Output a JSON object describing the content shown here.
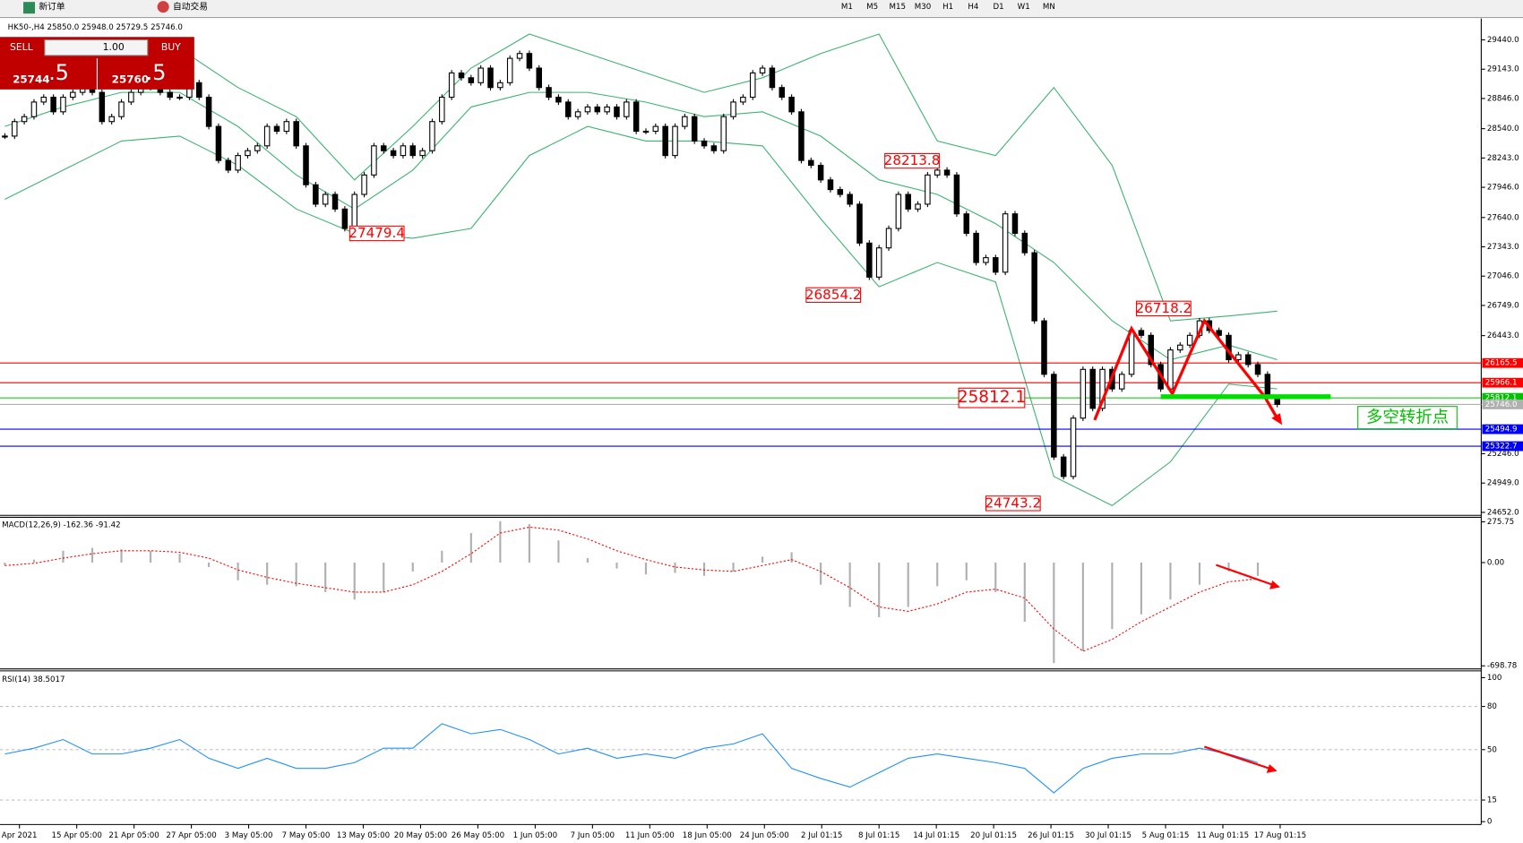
{
  "toolbar": {
    "new_order": "新订单",
    "auto_trading": "自动交易",
    "timeframes": [
      "M1",
      "M5",
      "M15",
      "M30",
      "H1",
      "H4",
      "D1",
      "W1",
      "MN"
    ]
  },
  "trade_panel": {
    "sell": "SELL",
    "buy": "BUY",
    "lots": "1.00",
    "sell_price": "25744",
    "sell_pips": ".5",
    "buy_price": "25760",
    "buy_pips": ".5"
  },
  "chart_data": {
    "type": "candlestick",
    "title": "HK50-,H4  25850.0 25948.0 25729.5 25746.0",
    "x_labels": [
      "Apr 2021",
      "15 Apr 05:00",
      "21 Apr 05:00",
      "27 Apr 05:00",
      "3 May 05:00",
      "7 May 05:00",
      "13 May 05:00",
      "20 May 05:00",
      "26 May 05:00",
      "1 Jun 05:00",
      "7 Jun 05:00",
      "11 Jun 05:00",
      "18 Jun 05:00",
      "24 Jun 05:00",
      "2 Jul 01:15",
      "8 Jul 01:15",
      "14 Jul 01:15",
      "20 Jul 01:15",
      "26 Jul 01:15",
      "30 Jul 01:15",
      "5 Aug 01:15",
      "11 Aug 01:15",
      "17 Aug 01:15"
    ],
    "close": [
      28465,
      28612,
      28662,
      28810,
      28859,
      28711,
      28859,
      28908,
      28957,
      28908,
      28612,
      28662,
      28810,
      28908,
      28957,
      29056,
      28908,
      28859,
      28859,
      29006,
      28859,
      28563,
      28218,
      28120,
      28268,
      28317,
      28366,
      28563,
      28514,
      28612,
      28366,
      27972,
      27775,
      27874,
      27726,
      27529,
      27874,
      28071,
      28366,
      28317,
      28268,
      28366,
      28268,
      28317,
      28612,
      28859,
      29105,
      29056,
      29006,
      29154,
      28957,
      29006,
      29253,
      29302,
      29154,
      28957,
      28859,
      28810,
      28662,
      28711,
      28760,
      28711,
      28760,
      28662,
      28810,
      28514,
      28514,
      28563,
      28268,
      28563,
      28662,
      28415,
      28366,
      28317,
      28662,
      28810,
      28859,
      29105,
      29154,
      28957,
      28859,
      28711,
      28218,
      28169,
      28021,
      27923,
      27874,
      27775,
      27381,
      27036,
      27332,
      27529,
      27874,
      27726,
      27775,
      28071,
      28120,
      28071,
      27677,
      27480,
      27184,
      27233,
      27086,
      27677,
      27480,
      27283,
      26593,
      26051,
      25213,
      25016,
      25607,
      26101,
      25706,
      26101,
      25903,
      26051,
      26495,
      26446,
      26150,
      25903,
      26298,
      26347,
      26446,
      26593,
      26495,
      26446,
      26199,
      26249,
      26150,
      26051,
      25805,
      25746
    ],
    "ylim": [
      24622,
      29647
    ],
    "yticks": [
      {
        "value": 29440,
        "label": "29440.0"
      },
      {
        "value": 29143,
        "label": "29143.0"
      },
      {
        "value": 28846,
        "label": "28846.0"
      },
      {
        "value": 28540,
        "label": "28540.0"
      },
      {
        "value": 28243,
        "label": "28243.0"
      },
      {
        "value": 27946,
        "label": "27946.0"
      },
      {
        "value": 27640,
        "label": "27640.0"
      },
      {
        "value": 27343,
        "label": "27343.0"
      },
      {
        "value": 27046,
        "label": "27046.0"
      },
      {
        "value": 26749,
        "label": "26749.0"
      },
      {
        "value": 26443,
        "label": "26443.0"
      },
      {
        "value": 25246,
        "label": "25246.0"
      },
      {
        "value": 24949,
        "label": "24949.0"
      },
      {
        "value": 24652,
        "label": "24652.0"
      }
    ],
    "bands": {
      "index": [
        0,
        6,
        12,
        18,
        24,
        30,
        36,
        42,
        48,
        54,
        60,
        66,
        72,
        78,
        84,
        90,
        96,
        102,
        108,
        114,
        120,
        126,
        131
      ],
      "color": "#3cb371",
      "upper": [
        29302,
        29401,
        29401,
        29351,
        28957,
        28662,
        28021,
        28563,
        29154,
        29499,
        29302,
        29105,
        28908,
        29056,
        29302,
        29499,
        28415,
        28268,
        28957,
        28169,
        26593,
        26642,
        26691
      ],
      "middle": [
        28563,
        28760,
        28908,
        28908,
        28563,
        28071,
        27726,
        28120,
        28760,
        28908,
        28908,
        28809,
        28662,
        28711,
        28465,
        28021,
        27874,
        27578,
        27184,
        26593,
        26199,
        26347,
        26199
      ],
      "lower": [
        27824,
        28120,
        28415,
        28465,
        28169,
        27726,
        27480,
        27430,
        27529,
        28268,
        28563,
        28415,
        28415,
        28366,
        27627,
        26938,
        27184,
        26987,
        25016,
        24721,
        25164,
        25952,
        25903
      ]
    },
    "annotations": [
      27479.4,
      26854.2,
      28213.8,
      26718.2,
      24743.2,
      25812.1
    ],
    "levels": [
      {
        "price": 26165.5,
        "color": "#ff0000"
      },
      {
        "price": 25966.1,
        "color": "#ff0000"
      },
      {
        "price": 25812.1,
        "color": "#00c000"
      },
      {
        "price": {
          "value": 25746,
          "label": "25746.0"
        },
        "color": "#b0b0b0"
      },
      {
        "price": 25494.9,
        "color": "#0000ff"
      },
      {
        "price": 25322.7,
        "color": "#0000ff"
      }
    ],
    "signal_note": "多空转折点",
    "macd": {
      "title": "MACD(12,26,9) -162.36 -91.42",
      "index": [
        0,
        3,
        6,
        9,
        12,
        15,
        18,
        21,
        24,
        27,
        30,
        33,
        36,
        39,
        42,
        45,
        48,
        51,
        54,
        57,
        60,
        63,
        66,
        69,
        72,
        75,
        78,
        81,
        84,
        87,
        90,
        93,
        96,
        99,
        102,
        105,
        108,
        111,
        114,
        117,
        120,
        123,
        126,
        129
      ],
      "histogram": [
        -20,
        20,
        80,
        100,
        90,
        80,
        60,
        -30,
        -120,
        -150,
        -160,
        -200,
        -250,
        -200,
        -60,
        80,
        200,
        280,
        260,
        150,
        30,
        -40,
        -80,
        -70,
        -90,
        -60,
        40,
        70,
        -150,
        -300,
        -370,
        -300,
        -160,
        -120,
        -200,
        -400,
        -680,
        -600,
        -450,
        -350,
        -250,
        -150,
        -60,
        -90
      ],
      "signal": [
        -20,
        -5,
        30,
        60,
        80,
        80,
        70,
        30,
        -50,
        -100,
        -140,
        -170,
        -200,
        -200,
        -150,
        -60,
        60,
        200,
        240,
        220,
        160,
        80,
        20,
        -30,
        -50,
        -60,
        -20,
        20,
        -60,
        -170,
        -300,
        -330,
        -280,
        -200,
        -180,
        -240,
        -450,
        -600,
        -520,
        -400,
        -300,
        -200,
        -130,
        -110
      ],
      "ylim": [
        -720,
        300
      ],
      "yticks": [
        275.75,
        {
          "value": 0,
          "label": "0.00"
        },
        -698.78
      ]
    },
    "rsi": {
      "title": "RSI(14) 38.5017",
      "index": [
        0,
        3,
        6,
        9,
        12,
        15,
        18,
        21,
        24,
        27,
        30,
        33,
        36,
        39,
        42,
        45,
        48,
        51,
        54,
        57,
        60,
        63,
        66,
        69,
        72,
        75,
        78,
        81,
        84,
        87,
        90,
        93,
        96,
        99,
        102,
        105,
        108,
        111,
        114,
        117,
        120,
        123,
        126,
        129
      ],
      "values": [
        47,
        51,
        57,
        47,
        47,
        51,
        57,
        44,
        37,
        44,
        37,
        37,
        41,
        51,
        51,
        68,
        61,
        64,
        57,
        47,
        51,
        44,
        47,
        44,
        51,
        54,
        61,
        37,
        30,
        24,
        34,
        44,
        47,
        44,
        41,
        37,
        20,
        37,
        44,
        47,
        47,
        51,
        47,
        41
      ],
      "color": "#1e90ff",
      "ylim": [
        -2,
        104
      ],
      "yticks": [
        100,
        80,
        50,
        15,
        0
      ],
      "levels": [
        80,
        50,
        15
      ]
    }
  }
}
